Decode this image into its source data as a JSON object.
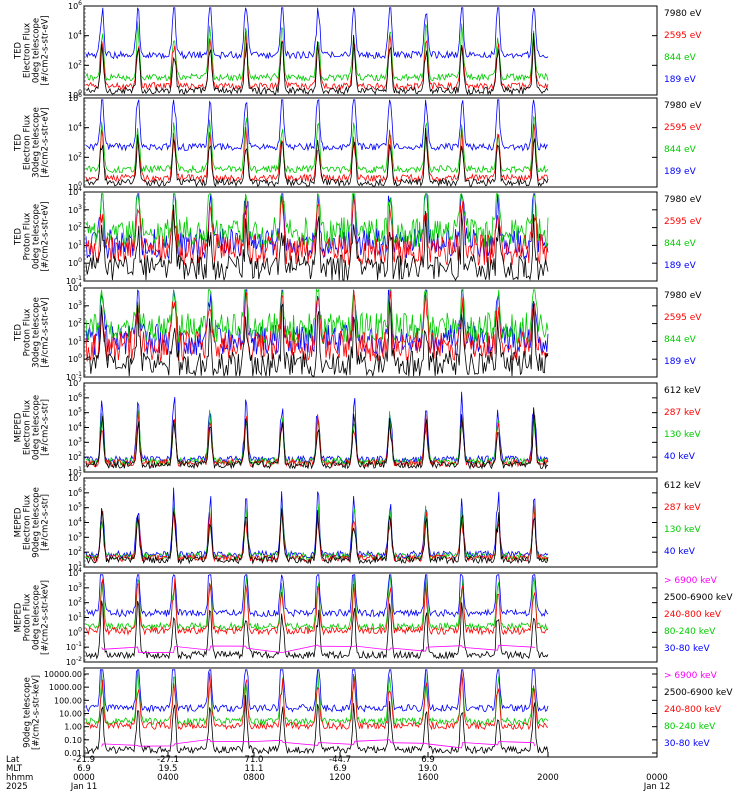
{
  "chart_data": [
    {
      "type": "line",
      "panel": 1,
      "ylabel_lines": [
        "TED",
        "Electron Flux",
        "0deg telescope",
        "[#/cm2-s-str-eV]"
      ],
      "yscale": "log",
      "ylim": [
        1,
        1000000
      ],
      "ytick_labels": [
        "10^0",
        "10^2",
        "10^4",
        "10^6"
      ],
      "series": [
        {
          "name": "7980 eV",
          "color": "#000000"
        },
        {
          "name": "2595 eV",
          "color": "#ff0000"
        },
        {
          "name": "844 eV",
          "color": "#00cc00"
        },
        {
          "name": "189 eV",
          "color": "#0000ff"
        }
      ]
    },
    {
      "type": "line",
      "panel": 2,
      "ylabel_lines": [
        "TED",
        "Electron Flux",
        "30deg telescope",
        "[#/cm2-s-str-eV]"
      ],
      "yscale": "log",
      "ylim": [
        1,
        1000000
      ],
      "ytick_labels": [
        "10^0",
        "10^2",
        "10^4",
        "10^6"
      ],
      "series": [
        {
          "name": "7980 eV",
          "color": "#000000"
        },
        {
          "name": "2595 eV",
          "color": "#ff0000"
        },
        {
          "name": "844 eV",
          "color": "#00cc00"
        },
        {
          "name": "189 eV",
          "color": "#0000ff"
        }
      ]
    },
    {
      "type": "line",
      "panel": 3,
      "ylabel_lines": [
        "TED",
        "Proton Flux",
        "0deg telescope",
        "[#/cm2-s-str-eV]"
      ],
      "yscale": "log",
      "ylim": [
        0.1,
        10000
      ],
      "ytick_labels": [
        "10^-1",
        "10^0",
        "10^1",
        "10^2",
        "10^3",
        "10^4"
      ],
      "series": [
        {
          "name": "7980 eV",
          "color": "#000000"
        },
        {
          "name": "2595 eV",
          "color": "#ff0000"
        },
        {
          "name": "844 eV",
          "color": "#00cc00"
        },
        {
          "name": "189 eV",
          "color": "#0000ff"
        }
      ]
    },
    {
      "type": "line",
      "panel": 4,
      "ylabel_lines": [
        "TED",
        "Proton Flux",
        "30deg telescope",
        "[#/cm2-s-str-eV]"
      ],
      "yscale": "log",
      "ylim": [
        0.1,
        10000
      ],
      "ytick_labels": [
        "10^-1",
        "10^0",
        "10^1",
        "10^2",
        "10^3",
        "10^4"
      ],
      "series": [
        {
          "name": "7980 eV",
          "color": "#000000"
        },
        {
          "name": "2595 eV",
          "color": "#ff0000"
        },
        {
          "name": "844 eV",
          "color": "#00cc00"
        },
        {
          "name": "189 eV",
          "color": "#0000ff"
        }
      ]
    },
    {
      "type": "line",
      "panel": 5,
      "ylabel_lines": [
        "MEPED",
        "Electron Flux",
        "0deg telescope",
        "[#/cm2-s-str]"
      ],
      "yscale": "log",
      "ylim": [
        10,
        10000000
      ],
      "ytick_labels": [
        "10^1",
        "10^2",
        "10^3",
        "10^4",
        "10^5",
        "10^6",
        "10^7"
      ],
      "series": [
        {
          "name": "612 keV",
          "color": "#000000"
        },
        {
          "name": "287 keV",
          "color": "#ff0000"
        },
        {
          "name": "130 keV",
          "color": "#00cc00"
        },
        {
          "name": "40 keV",
          "color": "#0000ff"
        }
      ]
    },
    {
      "type": "line",
      "panel": 6,
      "ylabel_lines": [
        "MEPED",
        "Electron Flux",
        "90deg telescope",
        "[#/cm2-s-str]"
      ],
      "yscale": "log",
      "ylim": [
        10,
        10000000
      ],
      "ytick_labels": [
        "10^1",
        "10^2",
        "10^3",
        "10^4",
        "10^5",
        "10^6",
        "10^7"
      ],
      "series": [
        {
          "name": "612 keV",
          "color": "#000000"
        },
        {
          "name": "287 keV",
          "color": "#ff0000"
        },
        {
          "name": "130 keV",
          "color": "#00cc00"
        },
        {
          "name": "40 keV",
          "color": "#0000ff"
        }
      ]
    },
    {
      "type": "line",
      "panel": 7,
      "ylabel_lines": [
        "MEPED",
        "Proton Flux",
        "0deg telescope",
        "[#/cm2-s-str-keV]"
      ],
      "yscale": "log",
      "ylim": [
        0.01,
        10000
      ],
      "ytick_labels": [
        "10^-2",
        "10^-1",
        "10^0",
        "10^1",
        "10^2",
        "10^3",
        "10^4"
      ],
      "series": [
        {
          "name": "> 6900 keV",
          "color": "#ff00ff"
        },
        {
          "name": "2500-6900 keV",
          "color": "#000000"
        },
        {
          "name": "240-800 keV",
          "color": "#ff0000"
        },
        {
          "name": "80-240 keV",
          "color": "#00cc00"
        },
        {
          "name": "30-80 keV",
          "color": "#0000ff"
        }
      ]
    },
    {
      "type": "line",
      "panel": 8,
      "ylabel_lines": [
        "90deg telescope",
        "[#/cm2-s-str-keV]"
      ],
      "yscale": "log",
      "ylim": [
        0.01,
        10000
      ],
      "ytick_labels": [
        "10000.00",
        "1000.00",
        "100.00",
        "10.00",
        "1.00",
        "0.10",
        "0.01"
      ],
      "series": [
        {
          "name": "> 6900 keV",
          "color": "#ff00ff"
        },
        {
          "name": "2500-6900 keV",
          "color": "#000000"
        },
        {
          "name": "240-800 keV",
          "color": "#ff0000"
        },
        {
          "name": "80-240 keV",
          "color": "#00cc00"
        },
        {
          "name": "30-80 keV",
          "color": "#0000ff"
        }
      ]
    }
  ],
  "x_axis": {
    "row_labels": [
      "Lat",
      "MLT",
      "hhmm",
      "2025"
    ],
    "lat": [
      "-21.9",
      "-27.1",
      "71.0",
      "-44.7",
      "6.9"
    ],
    "mlt": [
      "6.9",
      "19.5",
      "11.1",
      "6.9",
      "19.0"
    ],
    "hhmm": [
      "0000",
      "0400",
      "0800",
      "1200",
      "1600",
      "2000",
      "0000"
    ],
    "date": [
      "Jan 11",
      "Jan 12"
    ]
  }
}
